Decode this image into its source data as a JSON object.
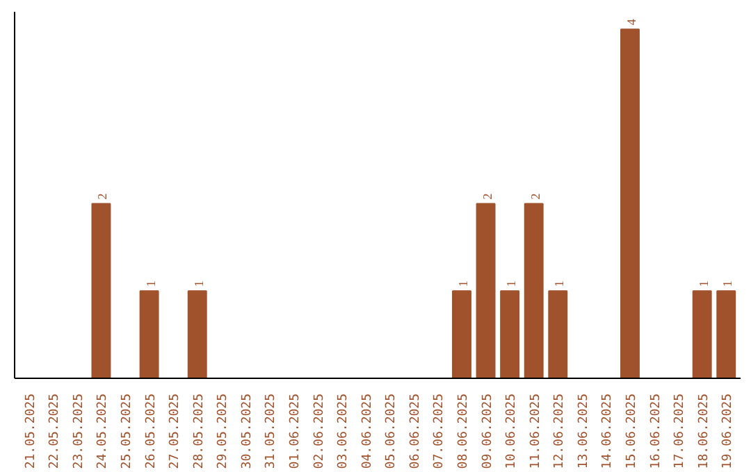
{
  "chart_data": {
    "type": "bar",
    "categories": [
      "21.05.2025",
      "22.05.2025",
      "23.05.2025",
      "24.05.2025",
      "25.05.2025",
      "26.05.2025",
      "27.05.2025",
      "28.05.2025",
      "29.05.2025",
      "30.05.2025",
      "31.05.2025",
      "01.06.2025",
      "02.06.2025",
      "03.06.2025",
      "04.06.2025",
      "05.06.2025",
      "06.06.2025",
      "07.06.2025",
      "08.06.2025",
      "09.06.2025",
      "10.06.2025",
      "11.06.2025",
      "12.06.2025",
      "13.06.2025",
      "14.06.2025",
      "15.06.2025",
      "16.06.2025",
      "17.06.2025",
      "18.06.2025",
      "19.06.2025"
    ],
    "values": [
      0,
      0,
      0,
      2,
      0,
      1,
      0,
      1,
      0,
      0,
      0,
      0,
      0,
      0,
      0,
      0,
      0,
      0,
      1,
      2,
      1,
      2,
      1,
      0,
      0,
      4,
      0,
      0,
      1,
      1
    ],
    "value_labels": [
      null,
      null,
      null,
      "2",
      null,
      "1",
      null,
      "1",
      null,
      null,
      null,
      null,
      null,
      null,
      null,
      null,
      null,
      null,
      "1",
      "2",
      "1",
      "2",
      "1",
      null,
      null,
      "4",
      null,
      null,
      "1",
      "1"
    ],
    "color": "#a0522d",
    "ylim": [
      0,
      4.2
    ],
    "tick_labels": "x"
  }
}
